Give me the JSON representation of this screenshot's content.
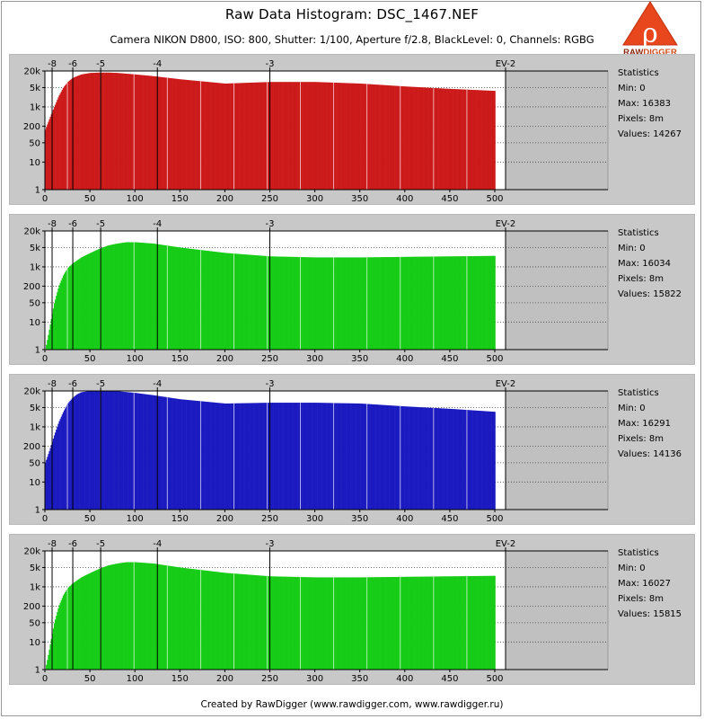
{
  "title": "Raw Data Histogram: DSC_1467.NEF",
  "subtitle": "Camera NIKON D800, ISO: 800, Shutter: 1/100, Aperture f/2.8, BlackLevel: 0, Channels: RGBG",
  "logo_text": "RAWDIGGER",
  "footer": "Created by RawDigger (www.rawdigger.com, www.rawdigger.ru)",
  "chart_data": [
    {
      "type": "bar",
      "channel": "R",
      "color": "#cc1a1a",
      "x_ticks": [
        "0",
        "50",
        "100",
        "150",
        "200",
        "250",
        "300",
        "350",
        "400",
        "450",
        "500"
      ],
      "xlim": [
        0,
        500
      ],
      "y_ticks": [
        "20k",
        "5k",
        "1k",
        "200",
        "50",
        "10",
        "1"
      ],
      "y_scale": "log",
      "ylim": [
        1,
        20000
      ],
      "ev_ticks": [
        "-8",
        "-6",
        "-5",
        "-4",
        "-3",
        "EV-2"
      ],
      "ev_positions": [
        8,
        31,
        62,
        125,
        250,
        500
      ],
      "x": [
        0,
        5,
        10,
        15,
        20,
        25,
        30,
        35,
        40,
        50,
        60,
        70,
        80,
        100,
        120,
        150,
        200,
        250,
        300,
        350,
        400,
        450,
        500
      ],
      "y": [
        150,
        400,
        1000,
        2500,
        5000,
        8000,
        11000,
        13000,
        15000,
        17000,
        17500,
        17500,
        17000,
        15000,
        13000,
        10000,
        7000,
        8000,
        8000,
        7000,
        5500,
        4500,
        3800
      ],
      "stats": {
        "heading": "Statistics",
        "min": "Min: 0",
        "max": "Max: 16383",
        "pixels": "Pixels: 8m",
        "values": "Values: 14267"
      }
    },
    {
      "type": "bar",
      "channel": "G",
      "color": "#16cc16",
      "x_ticks": [
        "0",
        "50",
        "100",
        "150",
        "200",
        "250",
        "300",
        "350",
        "400",
        "450",
        "500"
      ],
      "xlim": [
        0,
        500
      ],
      "y_ticks": [
        "20k",
        "5k",
        "1k",
        "200",
        "50",
        "10",
        "1"
      ],
      "y_scale": "log",
      "ylim": [
        1,
        20000
      ],
      "ev_ticks": [
        "-8",
        "-6",
        "-5",
        "-4",
        "-3",
        "EV-2"
      ],
      "ev_positions": [
        8,
        31,
        62,
        125,
        250,
        500
      ],
      "x": [
        0,
        3,
        6,
        10,
        15,
        20,
        25,
        30,
        40,
        50,
        60,
        70,
        80,
        90,
        100,
        120,
        150,
        200,
        250,
        300,
        350,
        400,
        450,
        500
      ],
      "y": [
        1,
        3,
        10,
        50,
        200,
        500,
        900,
        1300,
        2200,
        3200,
        4500,
        6000,
        7000,
        7800,
        7800,
        7000,
        5000,
        3200,
        2400,
        2200,
        2200,
        2300,
        2400,
        2500
      ],
      "stats": {
        "heading": "Statistics",
        "min": "Min: 0",
        "max": "Max: 16034",
        "pixels": "Pixels: 8m",
        "values": "Values: 15822"
      }
    },
    {
      "type": "bar",
      "channel": "B",
      "color": "#1a1ac0",
      "x_ticks": [
        "0",
        "50",
        "100",
        "150",
        "200",
        "250",
        "300",
        "350",
        "400",
        "450",
        "500"
      ],
      "xlim": [
        0,
        500
      ],
      "y_ticks": [
        "20k",
        "5k",
        "1k",
        "200",
        "50",
        "10",
        "1"
      ],
      "y_scale": "log",
      "ylim": [
        1,
        20000
      ],
      "ev_ticks": [
        "-8",
        "-6",
        "-5",
        "-4",
        "-3",
        "EV-2"
      ],
      "ev_positions": [
        8,
        31,
        62,
        125,
        250,
        500
      ],
      "x": [
        0,
        5,
        10,
        15,
        20,
        25,
        30,
        35,
        40,
        50,
        60,
        70,
        80,
        100,
        120,
        150,
        200,
        250,
        300,
        350,
        400,
        450,
        500
      ],
      "y": [
        50,
        150,
        500,
        1500,
        3500,
        7000,
        11000,
        15000,
        18000,
        20000,
        20000,
        20000,
        19500,
        17000,
        14000,
        10000,
        7000,
        7500,
        7500,
        7000,
        5500,
        4500,
        3500
      ],
      "stats": {
        "heading": "Statistics",
        "min": "Min: 0",
        "max": "Max: 16291",
        "pixels": "Pixels: 8m",
        "values": "Values: 14136"
      }
    },
    {
      "type": "bar",
      "channel": "G2",
      "color": "#16cc16",
      "x_ticks": [
        "0",
        "50",
        "100",
        "150",
        "200",
        "250",
        "300",
        "350",
        "400",
        "450",
        "500"
      ],
      "xlim": [
        0,
        500
      ],
      "y_ticks": [
        "20k",
        "5k",
        "1k",
        "200",
        "50",
        "10",
        "1"
      ],
      "y_scale": "log",
      "ylim": [
        1,
        20000
      ],
      "ev_ticks": [
        "-8",
        "-6",
        "-5",
        "-4",
        "-3",
        "EV-2"
      ],
      "ev_positions": [
        8,
        31,
        62,
        125,
        250,
        500
      ],
      "x": [
        0,
        3,
        6,
        10,
        15,
        20,
        25,
        30,
        40,
        50,
        60,
        70,
        80,
        90,
        100,
        120,
        150,
        200,
        250,
        300,
        350,
        400,
        450,
        500
      ],
      "y": [
        1,
        3,
        10,
        50,
        200,
        500,
        900,
        1300,
        2200,
        3200,
        4500,
        6000,
        7000,
        7800,
        7800,
        7000,
        5000,
        3200,
        2400,
        2200,
        2200,
        2300,
        2400,
        2500
      ],
      "stats": {
        "heading": "Statistics",
        "min": "Min: 0",
        "max": "Max: 16027",
        "pixels": "Pixels: 8m",
        "values": "Values: 15815"
      }
    }
  ]
}
